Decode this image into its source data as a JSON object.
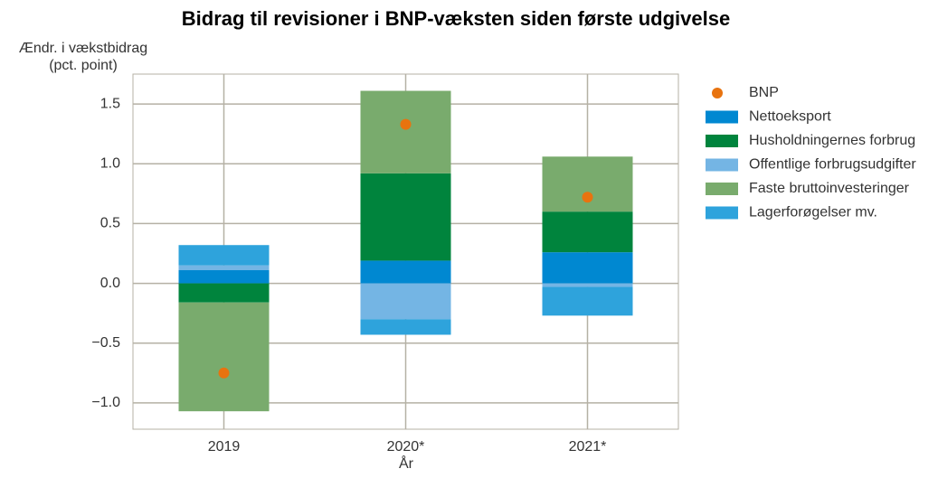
{
  "chart_data": {
    "type": "bar",
    "stacked": true,
    "title": "Bidrag til revisioner i BNP-væksten siden første udgivelse",
    "ylabel": [
      "Ændr. i vækstbidrag",
      "(pct. point)"
    ],
    "xlabel": "År",
    "categories": [
      "2019",
      "2020*",
      "2021*"
    ],
    "series": [
      {
        "name": "Nettoeksport",
        "color": "#0088d1",
        "values": [
          0.11,
          0.19,
          0.26
        ]
      },
      {
        "name": "Husholdningernes forbrug",
        "color": "#00843d",
        "values": [
          -0.16,
          0.73,
          0.34
        ]
      },
      {
        "name": "Offentlige forbrugsudgifter",
        "color": "#74b5e4",
        "values": [
          0.04,
          -0.3,
          -0.03
        ]
      },
      {
        "name": "Faste bruttoinvesteringer",
        "color": "#79ab6d",
        "values": [
          -0.91,
          0.69,
          0.46
        ]
      },
      {
        "name": "Lagerforøgelser mv.",
        "color": "#2ea3dc",
        "values": [
          0.17,
          -0.13,
          -0.24
        ]
      }
    ],
    "markers": {
      "name": "BNP",
      "color": "#e8730f",
      "values": [
        -0.75,
        1.33,
        0.72
      ]
    },
    "ylim": [
      -1.22,
      1.75
    ],
    "yticks": [
      {
        "value": -1.0,
        "label": "−1.0"
      },
      {
        "value": -0.5,
        "label": "−0.5"
      },
      {
        "value": 0.0,
        "label": "0.0"
      },
      0.5,
      {
        "value": 1.0,
        "label": "1.0"
      },
      1.5
    ],
    "grid": true,
    "legend": "right"
  }
}
